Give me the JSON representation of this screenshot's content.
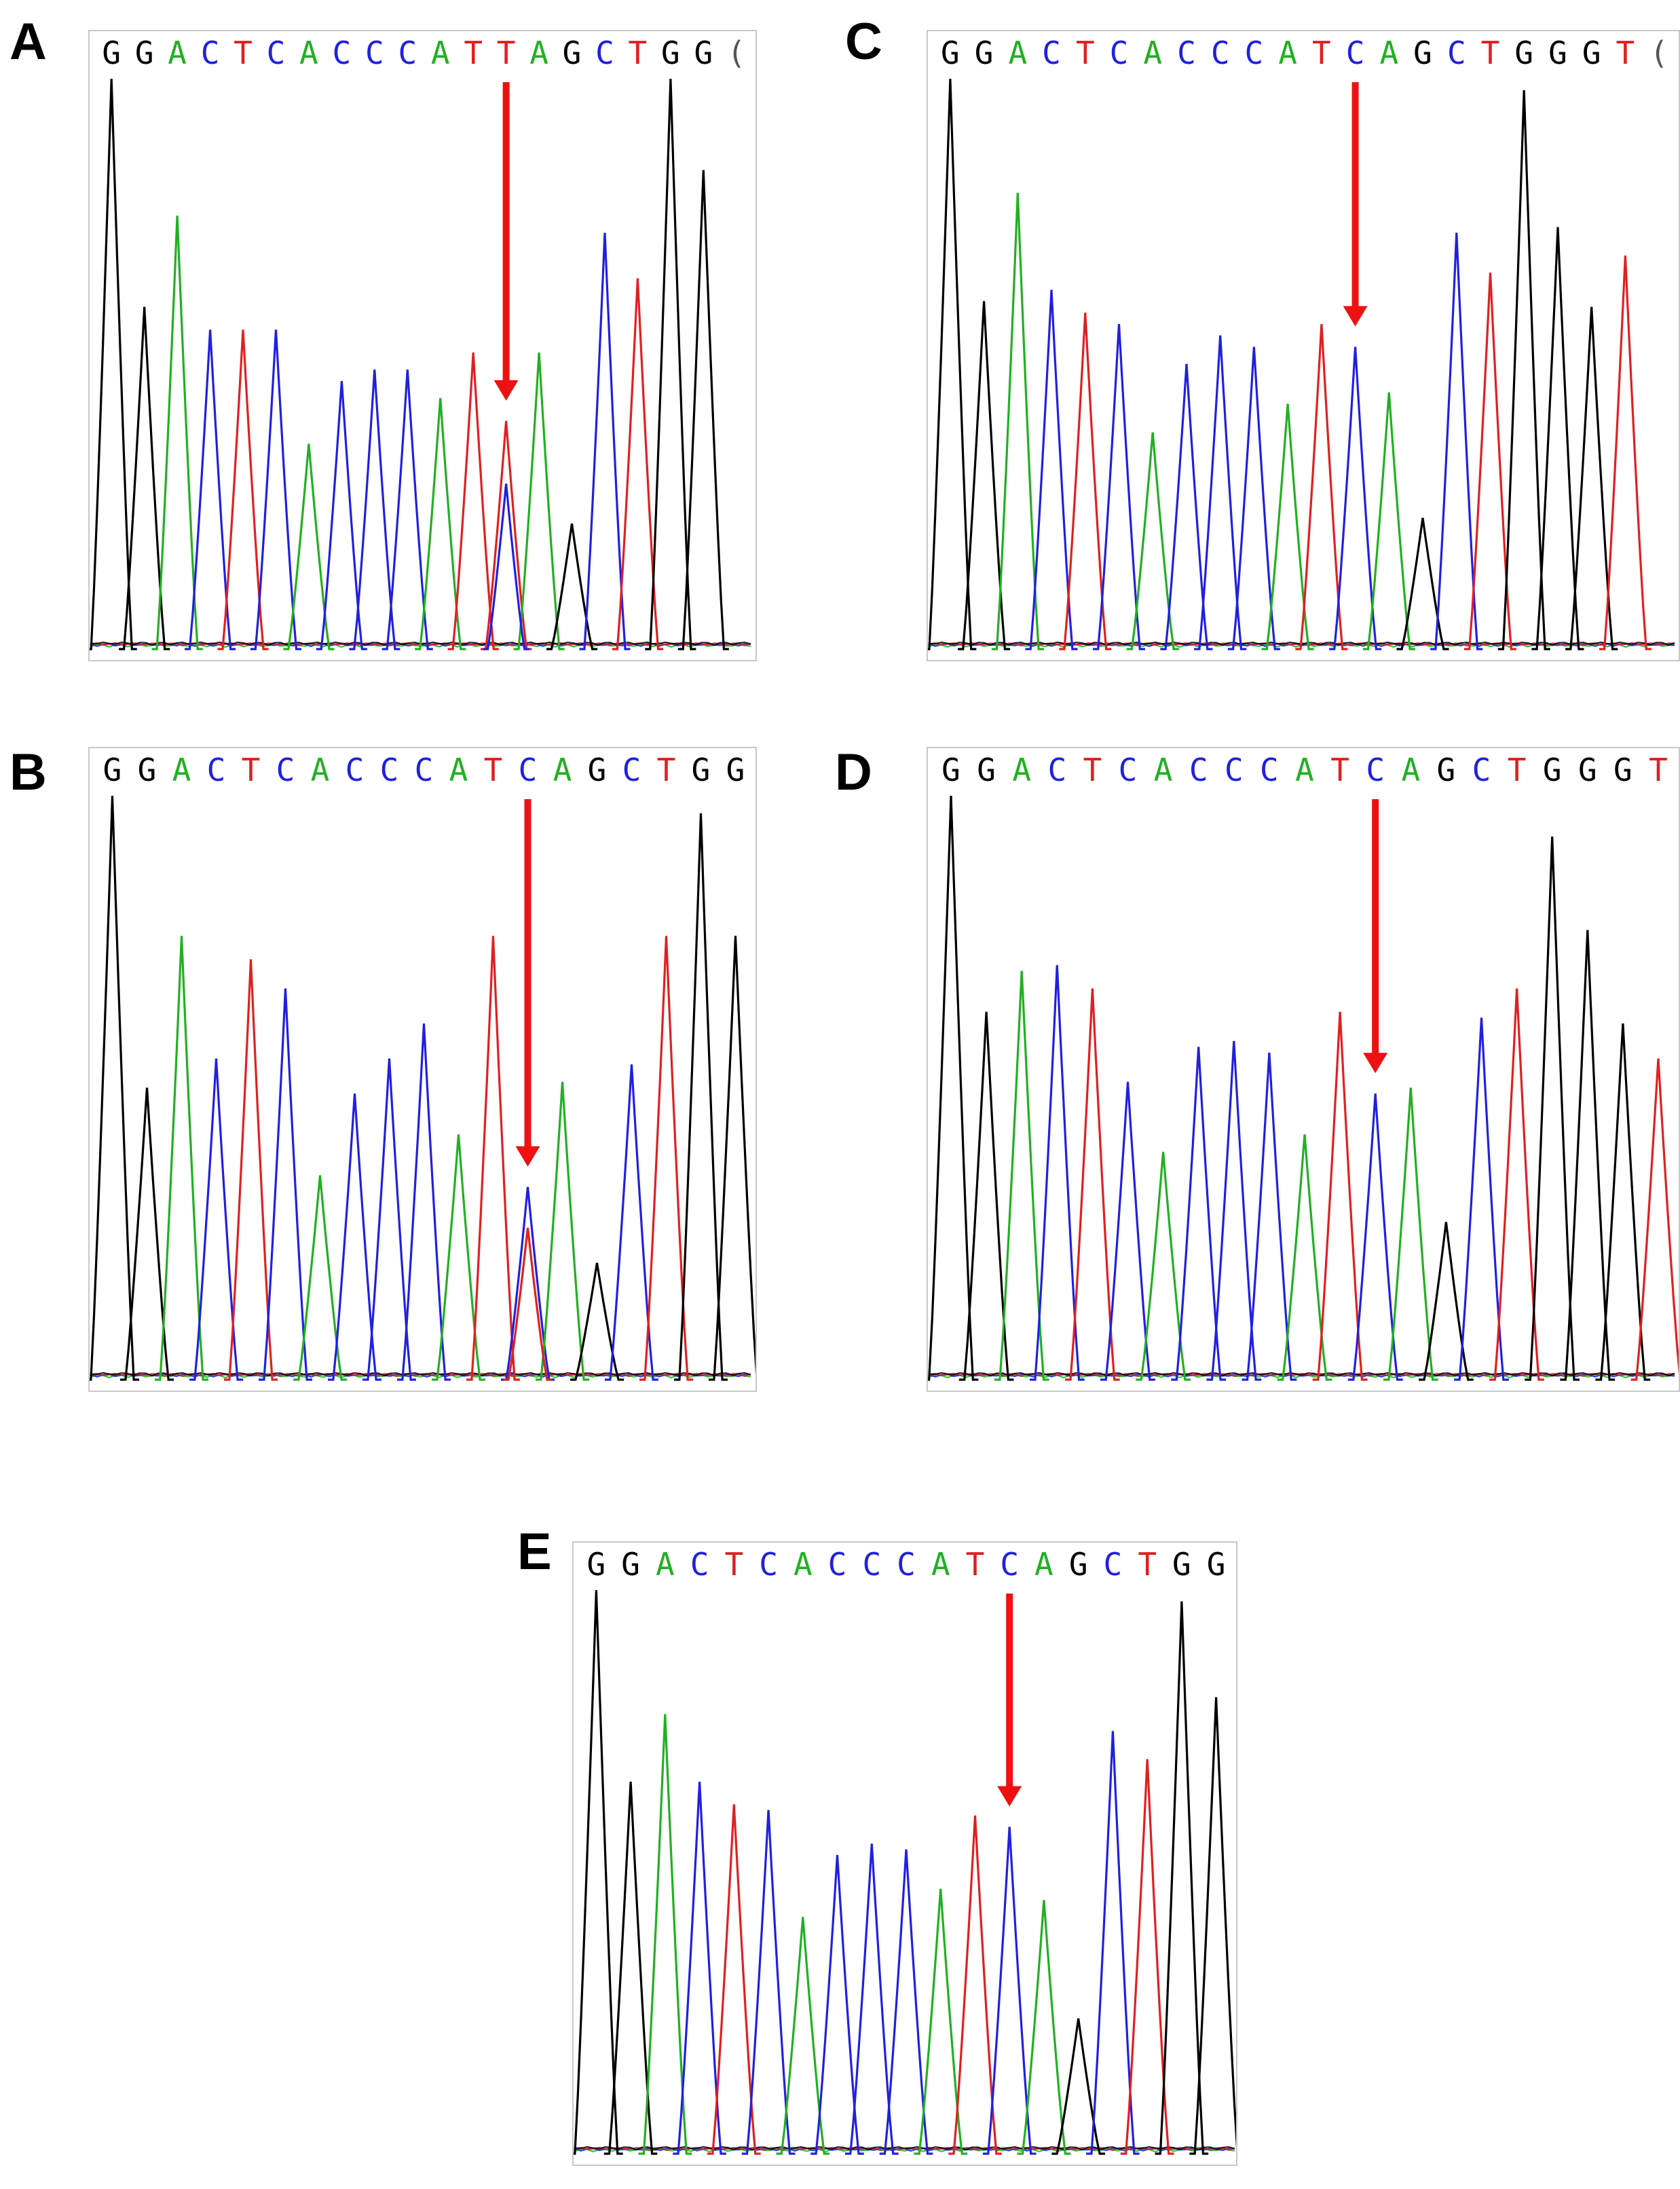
{
  "figure": {
    "base_colors": {
      "G": "#000000",
      "A": "#22b022",
      "C": "#2020e0",
      "T": "#e02020"
    },
    "arrow_color": "#ee1111"
  },
  "panels": [
    {
      "label": "A",
      "sequence": "GGACTCACCCATTAGCTGG(",
      "peaks": [
        {
          "base": "G",
          "height": 1.0
        },
        {
          "base": "G",
          "height": 0.6
        },
        {
          "base": "A",
          "height": 0.76
        },
        {
          "base": "C",
          "height": 0.56
        },
        {
          "base": "T",
          "height": 0.56
        },
        {
          "base": "C",
          "height": 0.56
        },
        {
          "base": "A",
          "height": 0.36
        },
        {
          "base": "C",
          "height": 0.47
        },
        {
          "base": "C",
          "height": 0.49
        },
        {
          "base": "C",
          "height": 0.49
        },
        {
          "base": "A",
          "height": 0.44
        },
        {
          "base": "T",
          "height": 0.52
        },
        {
          "base": "T",
          "height": 0.4
        },
        {
          "base": "A",
          "height": 0.52
        },
        {
          "base": "G",
          "height": 0.22
        },
        {
          "base": "C",
          "height": 0.73
        },
        {
          "base": "T",
          "height": 0.65
        },
        {
          "base": "G",
          "height": 1.0
        },
        {
          "base": "G",
          "height": 0.84
        }
      ],
      "secondary_peaks": [
        {
          "after_index": 12,
          "base": "C",
          "height": 0.29
        }
      ],
      "arrow_at_index": 12
    },
    {
      "label": "B",
      "sequence": "GGACTCACCCATCAGCTGG",
      "peaks": [
        {
          "base": "G",
          "height": 1.0
        },
        {
          "base": "G",
          "height": 0.5
        },
        {
          "base": "A",
          "height": 0.76
        },
        {
          "base": "C",
          "height": 0.55
        },
        {
          "base": "T",
          "height": 0.72
        },
        {
          "base": "C",
          "height": 0.67
        },
        {
          "base": "A",
          "height": 0.35
        },
        {
          "base": "C",
          "height": 0.49
        },
        {
          "base": "C",
          "height": 0.55
        },
        {
          "base": "C",
          "height": 0.61
        },
        {
          "base": "A",
          "height": 0.42
        },
        {
          "base": "T",
          "height": 0.76
        },
        {
          "base": "C",
          "height": 0.33
        },
        {
          "base": "A",
          "height": 0.51
        },
        {
          "base": "G",
          "height": 0.2
        },
        {
          "base": "C",
          "height": 0.54
        },
        {
          "base": "T",
          "height": 0.76
        },
        {
          "base": "G",
          "height": 0.97
        },
        {
          "base": "G",
          "height": 0.76
        }
      ],
      "secondary_peaks": [
        {
          "after_index": 12,
          "base": "T",
          "height": 0.26
        }
      ],
      "arrow_at_index": 12
    },
    {
      "label": "C",
      "sequence": "GGACTCACCCATCAGCTGGGT(",
      "peaks": [
        {
          "base": "G",
          "height": 1.0
        },
        {
          "base": "G",
          "height": 0.61
        },
        {
          "base": "A",
          "height": 0.8
        },
        {
          "base": "C",
          "height": 0.63
        },
        {
          "base": "T",
          "height": 0.59
        },
        {
          "base": "C",
          "height": 0.57
        },
        {
          "base": "A",
          "height": 0.38
        },
        {
          "base": "C",
          "height": 0.5
        },
        {
          "base": "C",
          "height": 0.55
        },
        {
          "base": "C",
          "height": 0.53
        },
        {
          "base": "A",
          "height": 0.43
        },
        {
          "base": "T",
          "height": 0.57
        },
        {
          "base": "C",
          "height": 0.53
        },
        {
          "base": "A",
          "height": 0.45
        },
        {
          "base": "G",
          "height": 0.23
        },
        {
          "base": "C",
          "height": 0.73
        },
        {
          "base": "T",
          "height": 0.66
        },
        {
          "base": "G",
          "height": 0.98
        },
        {
          "base": "G",
          "height": 0.74
        },
        {
          "base": "G",
          "height": 0.6
        },
        {
          "base": "T",
          "height": 0.69
        }
      ],
      "secondary_peaks": [],
      "arrow_at_index": 12
    },
    {
      "label": "D",
      "sequence": "GGACTCACCCATCAGCTGGGT",
      "peaks": [
        {
          "base": "G",
          "height": 1.0
        },
        {
          "base": "G",
          "height": 0.63
        },
        {
          "base": "A",
          "height": 0.7
        },
        {
          "base": "C",
          "height": 0.71
        },
        {
          "base": "T",
          "height": 0.67
        },
        {
          "base": "C",
          "height": 0.51
        },
        {
          "base": "A",
          "height": 0.39
        },
        {
          "base": "C",
          "height": 0.57
        },
        {
          "base": "C",
          "height": 0.58
        },
        {
          "base": "C",
          "height": 0.56
        },
        {
          "base": "A",
          "height": 0.42
        },
        {
          "base": "T",
          "height": 0.63
        },
        {
          "base": "C",
          "height": 0.49
        },
        {
          "base": "A",
          "height": 0.5
        },
        {
          "base": "G",
          "height": 0.27
        },
        {
          "base": "C",
          "height": 0.62
        },
        {
          "base": "T",
          "height": 0.67
        },
        {
          "base": "G",
          "height": 0.93
        },
        {
          "base": "G",
          "height": 0.77
        },
        {
          "base": "G",
          "height": 0.61
        },
        {
          "base": "T",
          "height": 0.55
        }
      ],
      "secondary_peaks": [],
      "arrow_at_index": 12
    },
    {
      "label": "E",
      "sequence": "GGACTCACCCATCAGCTGG",
      "peaks": [
        {
          "base": "G",
          "height": 1.0
        },
        {
          "base": "G",
          "height": 0.66
        },
        {
          "base": "A",
          "height": 0.78
        },
        {
          "base": "C",
          "height": 0.66
        },
        {
          "base": "T",
          "height": 0.62
        },
        {
          "base": "C",
          "height": 0.61
        },
        {
          "base": "A",
          "height": 0.42
        },
        {
          "base": "C",
          "height": 0.53
        },
        {
          "base": "C",
          "height": 0.55
        },
        {
          "base": "C",
          "height": 0.54
        },
        {
          "base": "A",
          "height": 0.47
        },
        {
          "base": "T",
          "height": 0.6
        },
        {
          "base": "C",
          "height": 0.58
        },
        {
          "base": "A",
          "height": 0.45
        },
        {
          "base": "G",
          "height": 0.24
        },
        {
          "base": "C",
          "height": 0.75
        },
        {
          "base": "T",
          "height": 0.7
        },
        {
          "base": "G",
          "height": 0.98
        },
        {
          "base": "G",
          "height": 0.81
        }
      ],
      "secondary_peaks": [],
      "arrow_at_index": 12
    }
  ]
}
